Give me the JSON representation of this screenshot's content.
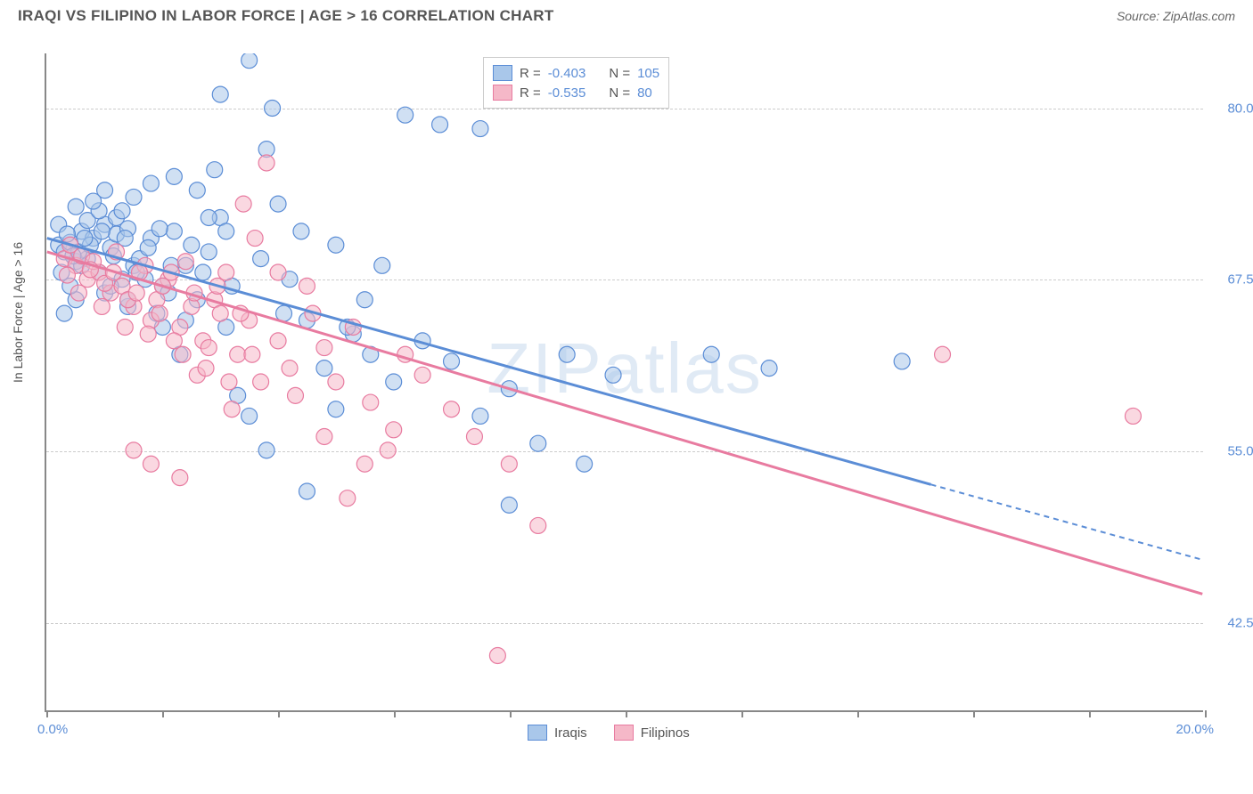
{
  "title": "IRAQI VS FILIPINO IN LABOR FORCE | AGE > 16 CORRELATION CHART",
  "source": "Source: ZipAtlas.com",
  "y_label": "In Labor Force | Age > 16",
  "watermark": "ZIPatlas",
  "chart": {
    "type": "scatter",
    "x_range": [
      0,
      20
    ],
    "y_range": [
      36,
      84
    ],
    "x_tick_labels": {
      "left": "0.0%",
      "right": "20.0%"
    },
    "x_tick_positions": [
      0,
      2,
      4,
      6,
      8,
      10,
      12,
      14,
      16,
      18,
      20
    ],
    "y_ticks": [
      {
        "val": 80.0,
        "label": "80.0%"
      },
      {
        "val": 67.5,
        "label": "67.5%"
      },
      {
        "val": 55.0,
        "label": "55.0%"
      },
      {
        "val": 42.5,
        "label": "42.5%"
      }
    ],
    "grid_color": "#cccccc",
    "grid_dash": "4,4",
    "background": "#ffffff",
    "series": [
      {
        "name": "Iraqis",
        "fill": "#a9c7ea",
        "stroke": "#5b8dd6",
        "fill_opacity": 0.55,
        "r_value": "-0.403",
        "n_value": "105",
        "trend": {
          "x1": 0,
          "y1": 70.5,
          "x2": 15.3,
          "y2": 52.5,
          "dash_x2": 20,
          "dash_y2": 47
        },
        "points": [
          [
            0.2,
            70
          ],
          [
            0.3,
            69.5
          ],
          [
            0.4,
            70.2
          ],
          [
            0.5,
            68.8
          ],
          [
            0.6,
            71
          ],
          [
            0.7,
            69
          ],
          [
            0.8,
            70.5
          ],
          [
            0.9,
            68
          ],
          [
            1.0,
            71.5
          ],
          [
            1.1,
            69.8
          ],
          [
            1.2,
            70.8
          ],
          [
            1.3,
            67.5
          ],
          [
            1.4,
            71.2
          ],
          [
            1.5,
            68.5
          ],
          [
            0.3,
            65
          ],
          [
            0.5,
            66
          ],
          [
            0.7,
            71.8
          ],
          [
            0.9,
            72.5
          ],
          [
            1.0,
            66.5
          ],
          [
            1.2,
            72
          ],
          [
            1.4,
            65.5
          ],
          [
            1.6,
            69
          ],
          [
            1.8,
            70.5
          ],
          [
            2.0,
            67
          ],
          [
            2.2,
            71
          ],
          [
            2.4,
            68.5
          ],
          [
            2.6,
            66
          ],
          [
            2.8,
            69.5
          ],
          [
            3.0,
            72
          ],
          [
            3.1,
            64
          ],
          [
            3.3,
            59
          ],
          [
            3.0,
            81
          ],
          [
            3.5,
            83.5
          ],
          [
            3.8,
            77
          ],
          [
            2.9,
            75.5
          ],
          [
            4.2,
            67.5
          ],
          [
            4.5,
            64.5
          ],
          [
            4.8,
            61
          ],
          [
            5.0,
            58
          ],
          [
            2.6,
            74
          ],
          [
            3.9,
            80
          ],
          [
            5.3,
            63.5
          ],
          [
            5.5,
            66
          ],
          [
            5.8,
            68.5
          ],
          [
            6.0,
            60
          ],
          [
            6.2,
            79.5
          ],
          [
            7.5,
            78.5
          ],
          [
            6.8,
            78.8
          ],
          [
            6.5,
            63
          ],
          [
            7.0,
            61.5
          ],
          [
            7.5,
            57.5
          ],
          [
            8.0,
            59.5
          ],
          [
            4.5,
            52
          ],
          [
            8.5,
            55.5
          ],
          [
            9.0,
            62
          ],
          [
            9.3,
            54
          ],
          [
            9.8,
            60.5
          ],
          [
            11.5,
            62
          ],
          [
            12.5,
            61
          ],
          [
            14.8,
            61.5
          ],
          [
            8.0,
            51
          ],
          [
            2.0,
            64
          ],
          [
            2.3,
            62
          ],
          [
            3.5,
            57.5
          ],
          [
            3.8,
            55
          ],
          [
            4.0,
            73
          ],
          [
            1.5,
            73.5
          ],
          [
            1.8,
            74.5
          ],
          [
            2.2,
            75
          ],
          [
            0.5,
            72.8
          ],
          [
            0.8,
            73.2
          ],
          [
            1.0,
            74
          ],
          [
            1.3,
            72.5
          ],
          [
            2.5,
            70
          ],
          [
            3.2,
            67
          ],
          [
            3.7,
            69
          ],
          [
            4.1,
            65
          ],
          [
            4.4,
            71
          ],
          [
            5.0,
            70
          ],
          [
            5.2,
            64
          ],
          [
            5.6,
            62
          ],
          [
            2.8,
            72
          ],
          [
            0.4,
            67
          ],
          [
            0.6,
            68.5
          ],
          [
            1.1,
            67
          ],
          [
            1.4,
            66
          ],
          [
            1.7,
            67.5
          ],
          [
            1.9,
            65
          ],
          [
            2.1,
            66.5
          ],
          [
            2.4,
            64.5
          ],
          [
            2.7,
            68
          ],
          [
            3.1,
            71
          ],
          [
            0.2,
            71.5
          ],
          [
            0.35,
            70.8
          ],
          [
            0.55,
            69.5
          ],
          [
            0.75,
            70
          ],
          [
            0.95,
            71
          ],
          [
            1.15,
            69.2
          ],
          [
            1.35,
            70.5
          ],
          [
            1.55,
            68
          ],
          [
            1.75,
            69.8
          ],
          [
            1.95,
            71.2
          ],
          [
            2.15,
            68.5
          ],
          [
            0.25,
            68
          ],
          [
            0.45,
            69.2
          ],
          [
            0.65,
            70.5
          ]
        ]
      },
      {
        "name": "Filipinos",
        "fill": "#f5b8c8",
        "stroke": "#e87ba0",
        "fill_opacity": 0.55,
        "r_value": "-0.535",
        "n_value": "80",
        "trend": {
          "x1": 0,
          "y1": 69.5,
          "x2": 20,
          "y2": 44.5,
          "dash_x2": null,
          "dash_y2": null
        },
        "points": [
          [
            0.3,
            69
          ],
          [
            0.5,
            68.5
          ],
          [
            0.7,
            67.5
          ],
          [
            0.9,
            68
          ],
          [
            1.1,
            66.5
          ],
          [
            1.3,
            67
          ],
          [
            1.5,
            65.5
          ],
          [
            1.7,
            68.5
          ],
          [
            1.9,
            66
          ],
          [
            2.1,
            67.5
          ],
          [
            2.3,
            64
          ],
          [
            2.5,
            65.5
          ],
          [
            2.7,
            63
          ],
          [
            2.9,
            66
          ],
          [
            3.1,
            68
          ],
          [
            3.3,
            62
          ],
          [
            3.5,
            64.5
          ],
          [
            3.7,
            60
          ],
          [
            0.4,
            70
          ],
          [
            0.6,
            69.2
          ],
          [
            0.8,
            68.8
          ],
          [
            1.0,
            67.2
          ],
          [
            1.2,
            69.5
          ],
          [
            1.4,
            66
          ],
          [
            1.6,
            68
          ],
          [
            1.8,
            64.5
          ],
          [
            2.0,
            67
          ],
          [
            2.2,
            63
          ],
          [
            2.4,
            68.8
          ],
          [
            2.6,
            60.5
          ],
          [
            2.8,
            62.5
          ],
          [
            3.0,
            65
          ],
          [
            3.2,
            58
          ],
          [
            3.4,
            73
          ],
          [
            3.6,
            70.5
          ],
          [
            3.8,
            76
          ],
          [
            4.0,
            63
          ],
          [
            4.2,
            61
          ],
          [
            4.5,
            67
          ],
          [
            4.8,
            62.5
          ],
          [
            5.0,
            60
          ],
          [
            5.3,
            64
          ],
          [
            5.6,
            58.5
          ],
          [
            5.9,
            55
          ],
          [
            6.2,
            62
          ],
          [
            6.5,
            60.5
          ],
          [
            7.0,
            58
          ],
          [
            7.4,
            56
          ],
          [
            8.0,
            54
          ],
          [
            8.5,
            49.5
          ],
          [
            7.8,
            40
          ],
          [
            15.5,
            62
          ],
          [
            18.8,
            57.5
          ],
          [
            1.5,
            55
          ],
          [
            1.8,
            54
          ],
          [
            2.3,
            53
          ],
          [
            4.8,
            56
          ],
          [
            5.5,
            54
          ],
          [
            5.2,
            51.5
          ],
          [
            6.0,
            56.5
          ],
          [
            0.35,
            67.8
          ],
          [
            0.55,
            66.5
          ],
          [
            0.75,
            68.2
          ],
          [
            0.95,
            65.5
          ],
          [
            1.15,
            68
          ],
          [
            1.35,
            64
          ],
          [
            1.55,
            66.5
          ],
          [
            1.75,
            63.5
          ],
          [
            1.95,
            65
          ],
          [
            2.15,
            68
          ],
          [
            2.35,
            62
          ],
          [
            2.55,
            66.5
          ],
          [
            2.75,
            61
          ],
          [
            2.95,
            67
          ],
          [
            3.15,
            60
          ],
          [
            3.35,
            65
          ],
          [
            3.55,
            62
          ],
          [
            4.0,
            68
          ],
          [
            4.3,
            59
          ],
          [
            4.6,
            65
          ]
        ]
      }
    ]
  },
  "stats_legend": {
    "r_label": "R =",
    "n_label": "N ="
  },
  "bottom_legend": {
    "items": [
      "Iraqis",
      "Filipinos"
    ]
  }
}
